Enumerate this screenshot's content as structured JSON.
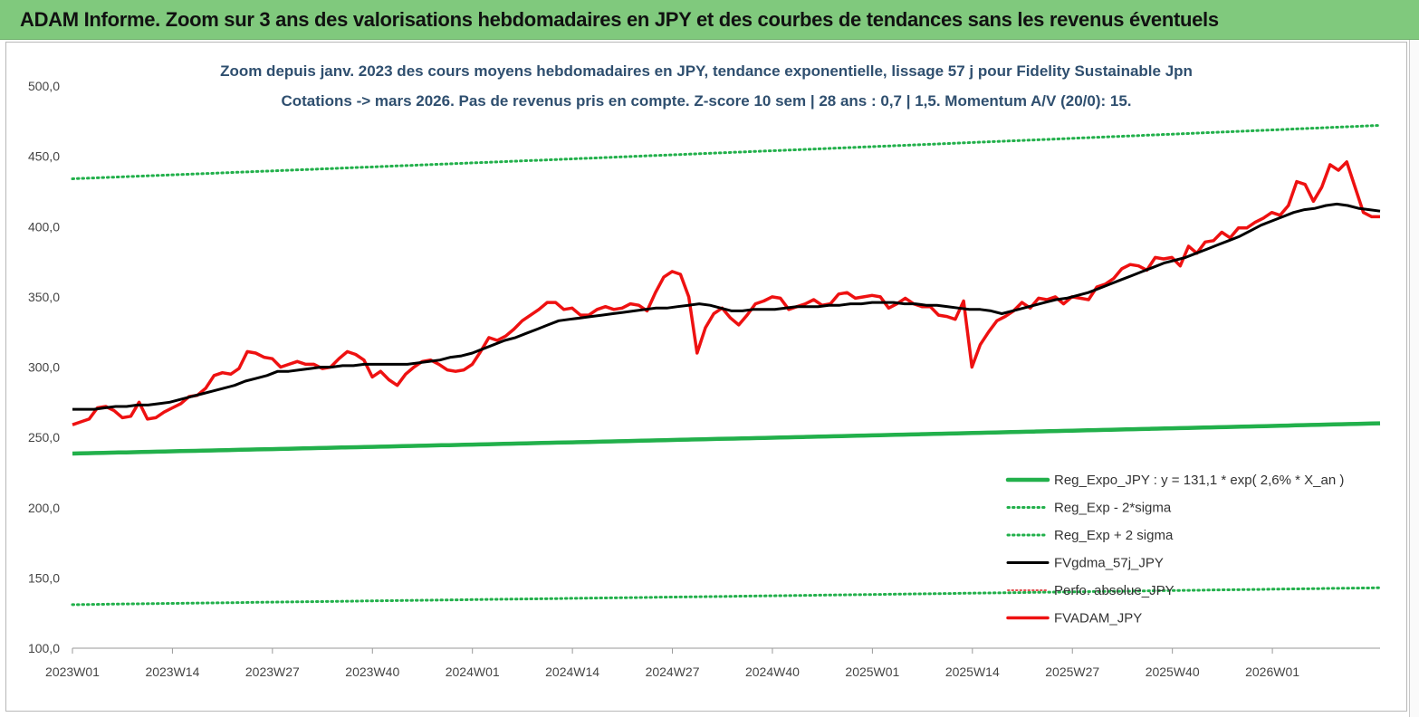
{
  "header": {
    "title": "ADAM Informe. Zoom sur 3 ans des valorisations hebdomadaires en JPY et des courbes de tendances sans les revenus éventuels"
  },
  "colors": {
    "banner": "#80c97d",
    "regression": "#22b04b",
    "sigma": "#22b04b",
    "smoothed": "#000000",
    "perfo": "#e05050",
    "price": "#ee1111",
    "subtitle": "#2f4f6f"
  },
  "chart_data": {
    "type": "line",
    "title_line1": "Zoom depuis janv. 2023 des cours moyens hebdomadaires en JPY, tendance exponentielle, lissage 57 j pour Fidelity Sustainable Jpn",
    "title_line2": "Cotations -> mars 2026. Pas de revenus pris en compte. Z-score 10 sem | 28 ans : 0,7 | 1,5. Momentum A/V (20/0): 15.",
    "ylim": [
      100,
      500
    ],
    "y_ticks": [
      "100,0",
      "150,0",
      "200,0",
      "250,0",
      "300,0",
      "350,0",
      "400,0",
      "450,0",
      "500,0"
    ],
    "x_tick_labels": [
      "2023W01",
      "2023W14",
      "2023W27",
      "2023W40",
      "2024W01",
      "2024W14",
      "2024W27",
      "2024W40",
      "2025W01",
      "2025W14",
      "2025W27",
      "2025W40",
      "2026W01"
    ],
    "weeks_count": 171,
    "legend_position": "bottom-right",
    "series": [
      {
        "name": "Reg_Expo_JPY : y = 131,1 * exp( 2,6% *  X_an )",
        "style": "thick",
        "start": 238.5,
        "end": 260
      },
      {
        "name": "Reg_Exp - 2*sigma",
        "style": "dotted",
        "start": 131,
        "end": 143
      },
      {
        "name": "Reg_Exp + 2 sigma",
        "style": "dotted",
        "start": 434,
        "end": 472
      },
      {
        "name": "FVgdma_57j_JPY",
        "style": "solid",
        "values": [
          270,
          270,
          270,
          271,
          272,
          272,
          273,
          273,
          274,
          275,
          277,
          279,
          281,
          283,
          285,
          287,
          290,
          292,
          294,
          297,
          297,
          298,
          299,
          300,
          300,
          301,
          301,
          302,
          302,
          302,
          302,
          302,
          303,
          304,
          305,
          307,
          308,
          310,
          313,
          316,
          319,
          321,
          324,
          327,
          330,
          333,
          334,
          335,
          336,
          337,
          338,
          339,
          340,
          341,
          342,
          342,
          343,
          344,
          345,
          344,
          342,
          340,
          340,
          341,
          341,
          341,
          342,
          343,
          343,
          343,
          344,
          344,
          345,
          345,
          346,
          346,
          346,
          345,
          345,
          344,
          344,
          343,
          342,
          341,
          341,
          340,
          338,
          340,
          342,
          344,
          346,
          348,
          349,
          351,
          353,
          356,
          359,
          362,
          365,
          368,
          371,
          374,
          376,
          378,
          381,
          384,
          387,
          390,
          393,
          397,
          401,
          404,
          407,
          410,
          412,
          413,
          415,
          416,
          415,
          413,
          412,
          411
        ]
      },
      {
        "name": "Perfo. absolue_JPY",
        "style": "dotted-thin",
        "values": []
      },
      {
        "name": "FVADAM_JPY",
        "style": "thick",
        "values": [
          259,
          261,
          263,
          271,
          272,
          269,
          264,
          265,
          275,
          263,
          264,
          268,
          271,
          274,
          279,
          280,
          285,
          294,
          296,
          295,
          299,
          311,
          310,
          307,
          306,
          300,
          302,
          304,
          302,
          302,
          299,
          300,
          306,
          311,
          309,
          305,
          293,
          297,
          291,
          287,
          295,
          300,
          304,
          305,
          302,
          298,
          297,
          298,
          302,
          311,
          321,
          319,
          322,
          327,
          333,
          337,
          341,
          346,
          346,
          341,
          342,
          337,
          337,
          341,
          343,
          341,
          342,
          345,
          344,
          340,
          353,
          364,
          368,
          366,
          350,
          310,
          328,
          338,
          342,
          335,
          330,
          337,
          345,
          347,
          350,
          349,
          341,
          343,
          345,
          348,
          344,
          345,
          352,
          353,
          349,
          350,
          351,
          350,
          342,
          345,
          349,
          345,
          343,
          343,
          337,
          336,
          334,
          347,
          300,
          316,
          325,
          333,
          336,
          340,
          346,
          342,
          349,
          348,
          350,
          345,
          350,
          349,
          348,
          357,
          359,
          363,
          370,
          373,
          372,
          369,
          378,
          377,
          378,
          372,
          386,
          381,
          389,
          390,
          396,
          392,
          399,
          399,
          403,
          406,
          410,
          408,
          415,
          432,
          430,
          418,
          428,
          444,
          440,
          446,
          428,
          410,
          407,
          407
        ]
      }
    ]
  }
}
